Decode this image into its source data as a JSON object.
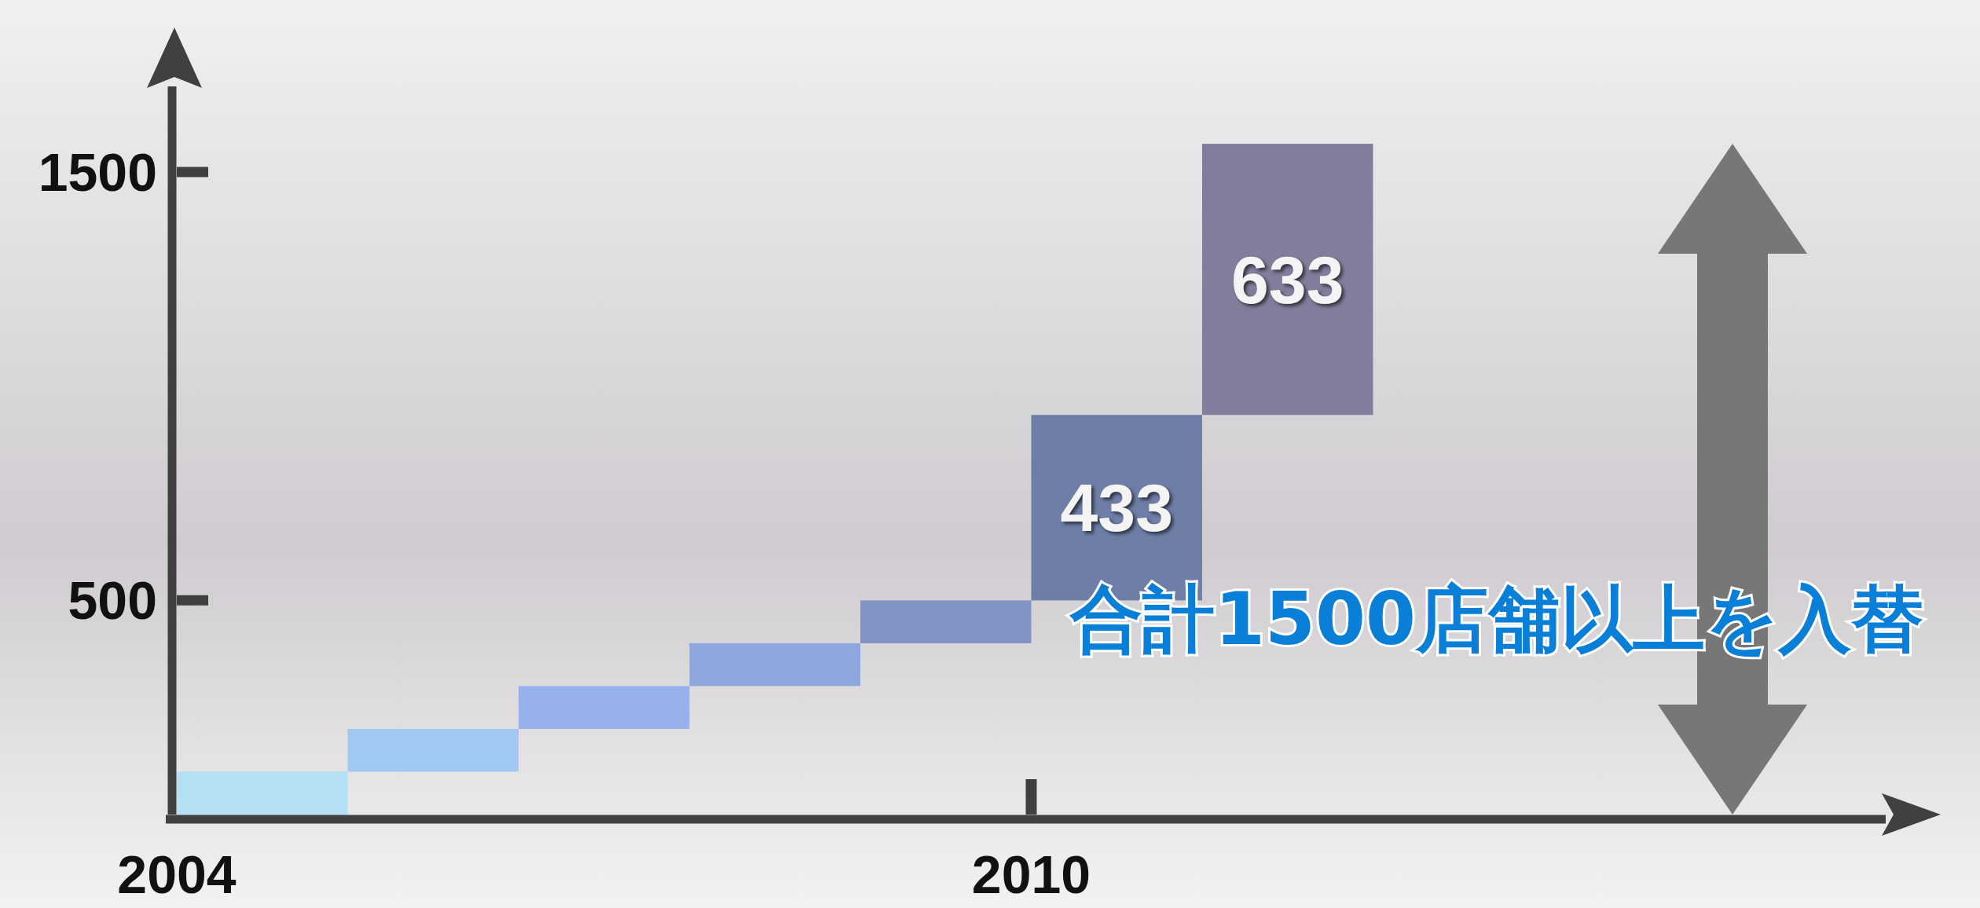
{
  "chart_data": {
    "type": "bar",
    "x": [
      2004.6,
      2005.8,
      2007.0,
      2008.2,
      2009.4,
      2010.6,
      2011.8
    ],
    "base": [
      0,
      100,
      200,
      300,
      400,
      500,
      933
    ],
    "values": [
      100,
      100,
      100,
      100,
      100,
      433,
      633
    ],
    "colors": [
      "#b3e0f2",
      "#a0c8f0",
      "#98b0ec",
      "#8ea6dc",
      "#8193c4",
      "#6e7ea6",
      "#817e9b"
    ],
    "value_labels": [
      null,
      null,
      null,
      null,
      null,
      "433",
      "633"
    ],
    "ylim": [
      0,
      1700
    ],
    "yticks": [
      500,
      1500
    ],
    "xlim": [
      2004,
      2016
    ],
    "xticks": [
      2004,
      2010
    ],
    "annotations": [
      "合計1500店舗以上を入替"
    ]
  }
}
